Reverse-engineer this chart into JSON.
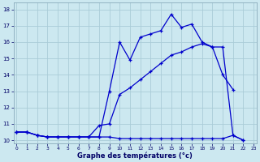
{
  "xlabel": "Graphe des températures (°c)",
  "background_color": "#cce8f0",
  "grid_color": "#aaccd8",
  "line_color": "#0000cc",
  "hours": [
    0,
    1,
    2,
    3,
    4,
    5,
    6,
    7,
    8,
    9,
    10,
    11,
    12,
    13,
    14,
    15,
    16,
    17,
    18,
    19,
    20,
    21,
    22,
    23
  ],
  "line_top": [
    10.5,
    10.5,
    10.3,
    10.2,
    10.2,
    10.2,
    10.2,
    10.2,
    10.2,
    13.0,
    16.0,
    14.9,
    16.3,
    16.5,
    16.7,
    17.7,
    16.9,
    17.1,
    16.0,
    15.7,
    15.7,
    10.3,
    10.0,
    null
  ],
  "line_mid": [
    10.5,
    10.5,
    10.3,
    10.2,
    10.2,
    10.2,
    10.2,
    10.2,
    10.9,
    11.0,
    12.8,
    13.2,
    13.7,
    14.2,
    14.7,
    15.2,
    15.4,
    15.7,
    15.9,
    15.7,
    14.0,
    13.1,
    null,
    null
  ],
  "line_bot": [
    10.5,
    10.5,
    10.3,
    10.2,
    10.2,
    10.2,
    10.2,
    10.2,
    10.2,
    10.2,
    10.1,
    10.1,
    10.1,
    10.1,
    10.1,
    10.1,
    10.1,
    10.1,
    10.1,
    10.1,
    10.1,
    10.3,
    10.0,
    null
  ],
  "ylim": [
    9.8,
    18.4
  ],
  "xlim": [
    -0.3,
    23.3
  ],
  "yticks": [
    10,
    11,
    12,
    13,
    14,
    15,
    16,
    17,
    18
  ],
  "xticks": [
    0,
    1,
    2,
    3,
    4,
    5,
    6,
    7,
    8,
    9,
    10,
    11,
    12,
    13,
    14,
    15,
    16,
    17,
    18,
    19,
    20,
    21,
    22,
    23
  ]
}
